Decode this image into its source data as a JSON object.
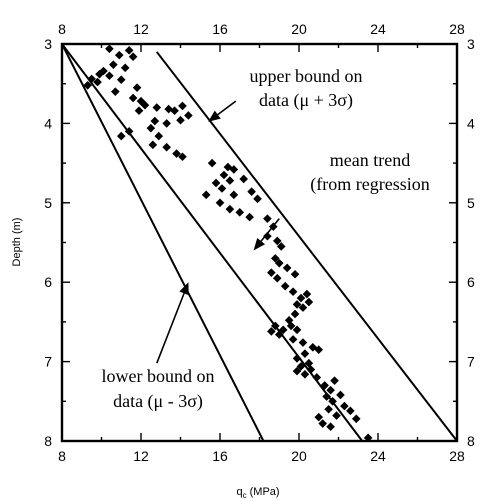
{
  "chart_data": {
    "type": "scatter",
    "xlabel": "qc (MPa)",
    "xlabel_main": "q",
    "xlabel_sub": "c",
    "xlabel_unit": " (MPa)",
    "ylabel": "Depth (m)",
    "xlim": [
      8,
      28
    ],
    "ylim": [
      3,
      8
    ],
    "y_inverted": true,
    "x_ticks": [
      8,
      12,
      16,
      20,
      24,
      28
    ],
    "y_ticks": [
      3,
      4,
      5,
      6,
      7,
      8
    ],
    "x_tick_labels": [
      "8",
      "12",
      "16",
      "20",
      "24",
      "28"
    ],
    "y_tick_labels": [
      "3",
      "4",
      "5",
      "6",
      "7",
      "8"
    ],
    "right_tick_labels": [
      "3",
      "4",
      "5",
      "6",
      "7",
      "8"
    ],
    "grid": false,
    "marker": "diamond",
    "points": [
      {
        "x": 10.4,
        "y": 3.06
      },
      {
        "x": 11.4,
        "y": 3.08
      },
      {
        "x": 10.9,
        "y": 3.14
      },
      {
        "x": 11.6,
        "y": 3.16
      },
      {
        "x": 10.6,
        "y": 3.26
      },
      {
        "x": 11.2,
        "y": 3.3
      },
      {
        "x": 10.1,
        "y": 3.34
      },
      {
        "x": 9.9,
        "y": 3.38
      },
      {
        "x": 9.5,
        "y": 3.44
      },
      {
        "x": 9.8,
        "y": 3.48
      },
      {
        "x": 9.3,
        "y": 3.52
      },
      {
        "x": 10.4,
        "y": 3.4
      },
      {
        "x": 11.0,
        "y": 3.45
      },
      {
        "x": 11.8,
        "y": 3.55
      },
      {
        "x": 10.7,
        "y": 3.6
      },
      {
        "x": 11.6,
        "y": 3.68
      },
      {
        "x": 12.0,
        "y": 3.72
      },
      {
        "x": 12.2,
        "y": 3.77
      },
      {
        "x": 11.9,
        "y": 3.84
      },
      {
        "x": 12.8,
        "y": 3.8
      },
      {
        "x": 13.4,
        "y": 3.82
      },
      {
        "x": 13.7,
        "y": 3.84
      },
      {
        "x": 14.1,
        "y": 3.78
      },
      {
        "x": 14.4,
        "y": 3.9
      },
      {
        "x": 14.0,
        "y": 3.96
      },
      {
        "x": 13.3,
        "y": 4.0
      },
      {
        "x": 12.7,
        "y": 3.97
      },
      {
        "x": 12.5,
        "y": 4.06
      },
      {
        "x": 11.4,
        "y": 4.1
      },
      {
        "x": 11.0,
        "y": 4.16
      },
      {
        "x": 12.9,
        "y": 4.16
      },
      {
        "x": 12.6,
        "y": 4.27
      },
      {
        "x": 13.3,
        "y": 4.3
      },
      {
        "x": 13.8,
        "y": 4.38
      },
      {
        "x": 14.1,
        "y": 4.42
      },
      {
        "x": 15.6,
        "y": 4.5
      },
      {
        "x": 16.4,
        "y": 4.55
      },
      {
        "x": 16.7,
        "y": 4.58
      },
      {
        "x": 16.2,
        "y": 4.65
      },
      {
        "x": 16.5,
        "y": 4.72
      },
      {
        "x": 15.8,
        "y": 4.75
      },
      {
        "x": 16.1,
        "y": 4.82
      },
      {
        "x": 17.2,
        "y": 4.7
      },
      {
        "x": 17.6,
        "y": 4.86
      },
      {
        "x": 17.9,
        "y": 4.95
      },
      {
        "x": 16.7,
        "y": 4.9
      },
      {
        "x": 15.3,
        "y": 4.9
      },
      {
        "x": 16.0,
        "y": 5.0
      },
      {
        "x": 16.5,
        "y": 5.08
      },
      {
        "x": 17.0,
        "y": 5.12
      },
      {
        "x": 17.5,
        "y": 5.18
      },
      {
        "x": 18.4,
        "y": 5.2
      },
      {
        "x": 18.7,
        "y": 5.3
      },
      {
        "x": 18.4,
        "y": 5.42
      },
      {
        "x": 18.9,
        "y": 5.48
      },
      {
        "x": 19.1,
        "y": 5.55
      },
      {
        "x": 18.8,
        "y": 5.7
      },
      {
        "x": 19.0,
        "y": 5.76
      },
      {
        "x": 19.4,
        "y": 5.82
      },
      {
        "x": 18.6,
        "y": 5.88
      },
      {
        "x": 18.9,
        "y": 5.95
      },
      {
        "x": 19.8,
        "y": 5.9
      },
      {
        "x": 19.3,
        "y": 6.05
      },
      {
        "x": 19.7,
        "y": 6.12
      },
      {
        "x": 20.4,
        "y": 6.15
      },
      {
        "x": 20.1,
        "y": 6.2
      },
      {
        "x": 20.5,
        "y": 6.25
      },
      {
        "x": 20.2,
        "y": 6.32
      },
      {
        "x": 19.9,
        "y": 6.28
      },
      {
        "x": 19.8,
        "y": 6.4
      },
      {
        "x": 19.5,
        "y": 6.48
      },
      {
        "x": 19.6,
        "y": 6.55
      },
      {
        "x": 19.2,
        "y": 6.6
      },
      {
        "x": 19.0,
        "y": 6.66
      },
      {
        "x": 18.6,
        "y": 6.62
      },
      {
        "x": 18.8,
        "y": 6.55
      },
      {
        "x": 19.9,
        "y": 6.6
      },
      {
        "x": 19.7,
        "y": 6.72
      },
      {
        "x": 20.2,
        "y": 6.76
      },
      {
        "x": 20.7,
        "y": 6.82
      },
      {
        "x": 21.0,
        "y": 6.85
      },
      {
        "x": 20.3,
        "y": 6.9
      },
      {
        "x": 19.9,
        "y": 6.96
      },
      {
        "x": 20.5,
        "y": 7.02
      },
      {
        "x": 20.6,
        "y": 7.1
      },
      {
        "x": 20.1,
        "y": 7.06
      },
      {
        "x": 19.9,
        "y": 7.12
      },
      {
        "x": 20.3,
        "y": 7.16
      },
      {
        "x": 20.9,
        "y": 7.2
      },
      {
        "x": 21.3,
        "y": 7.3
      },
      {
        "x": 21.8,
        "y": 7.24
      },
      {
        "x": 21.6,
        "y": 7.36
      },
      {
        "x": 22.1,
        "y": 7.42
      },
      {
        "x": 21.4,
        "y": 7.44
      },
      {
        "x": 21.7,
        "y": 7.5
      },
      {
        "x": 22.3,
        "y": 7.56
      },
      {
        "x": 22.6,
        "y": 7.62
      },
      {
        "x": 21.5,
        "y": 7.6
      },
      {
        "x": 21.0,
        "y": 7.7
      },
      {
        "x": 21.2,
        "y": 7.78
      },
      {
        "x": 21.6,
        "y": 7.82
      },
      {
        "x": 21.9,
        "y": 7.68
      },
      {
        "x": 23.5,
        "y": 7.96
      },
      {
        "x": 22.9,
        "y": 7.72
      }
    ],
    "lines": [
      {
        "role": "mean trend",
        "x": [
          8.0,
          23.2
        ],
        "y": [
          3.0,
          8.0
        ]
      },
      {
        "role": "upper bound",
        "x": [
          12.8,
          28.0
        ],
        "y": [
          3.1,
          8.0
        ]
      },
      {
        "role": "lower bound",
        "x": [
          8.0,
          18.2
        ],
        "y": [
          3.0,
          8.0
        ]
      }
    ],
    "annotations": {
      "upper": {
        "line1": "upper bound on",
        "line2": "data (μ + 3σ)"
      },
      "mean": {
        "line1": "mean trend",
        "line2": "(from regression"
      },
      "lower": {
        "line1": "lower bound on",
        "line2": "data (μ - 3σ)"
      }
    },
    "arrows": [
      {
        "role": "upper",
        "tail": {
          "x": 16.8,
          "y": 3.72
        },
        "head": {
          "x": 15.4,
          "y": 3.98
        }
      },
      {
        "role": "mean",
        "tail": {
          "x": 19.0,
          "y": 5.2
        },
        "head": {
          "x": 17.7,
          "y": 5.6
        }
      },
      {
        "role": "lower",
        "tail": {
          "x": 12.8,
          "y": 7.02
        },
        "head": {
          "x": 14.4,
          "y": 6.0
        }
      }
    ]
  }
}
